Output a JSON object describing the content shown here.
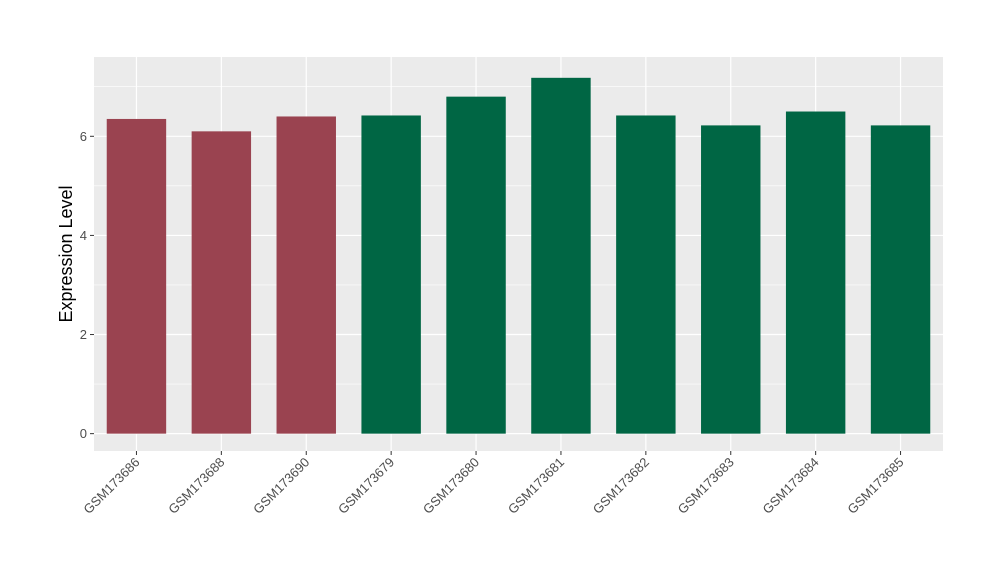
{
  "chart_data": {
    "type": "bar",
    "title": "",
    "xlabel": "",
    "ylabel": "Expression Level",
    "ylim": [
      -0.35,
      7.6
    ],
    "yticks": [
      0,
      2,
      4,
      6
    ],
    "grid": true,
    "legend": "none",
    "categories": [
      "GSM173686",
      "GSM173688",
      "GSM173690",
      "GSM173679",
      "GSM173680",
      "GSM173681",
      "GSM173682",
      "GSM173683",
      "GSM173684",
      "GSM173685"
    ],
    "values": [
      6.35,
      6.1,
      6.4,
      6.42,
      6.8,
      7.18,
      6.42,
      6.22,
      6.5,
      6.22
    ],
    "groups": [
      0,
      0,
      0,
      1,
      1,
      1,
      1,
      1,
      1,
      1
    ],
    "colors": {
      "group0": "#9a4350",
      "group1": "#006644",
      "panel": "#ebebeb",
      "grid": "#ffffff"
    }
  }
}
